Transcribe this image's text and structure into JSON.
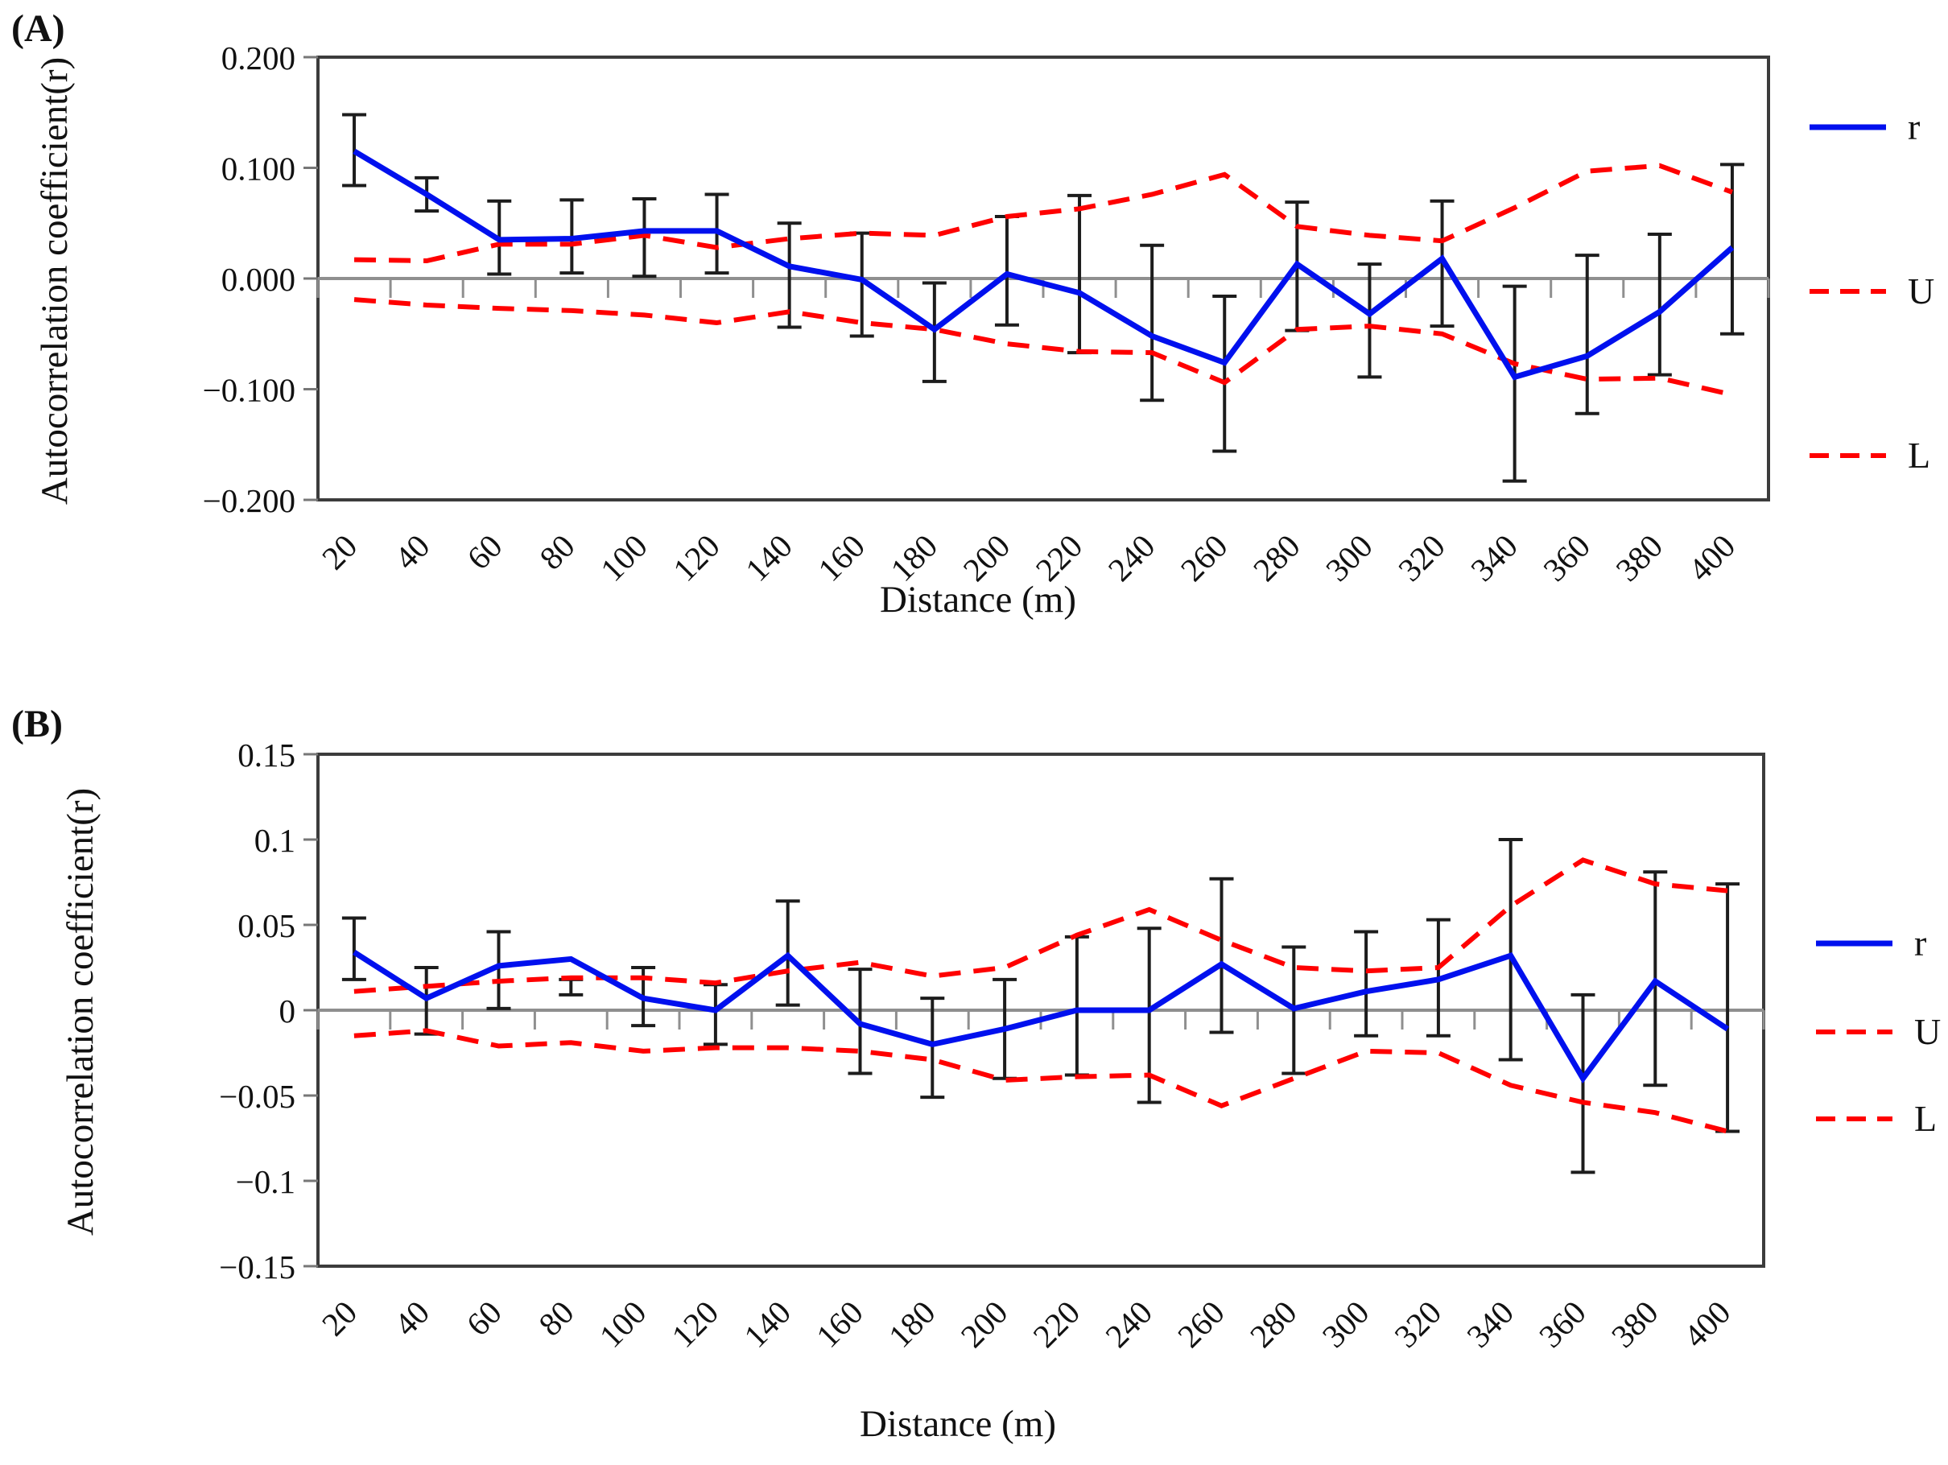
{
  "colors": {
    "r_line": "#0010ee",
    "bound_line": "#ff0000",
    "error_bar": "#1c1c1c",
    "zero_line": "#8f8f8f",
    "frame": "#3c3c3c",
    "tick": "#777777"
  },
  "chart_data": [
    {
      "type": "line",
      "panel_label": "(A)",
      "ylabel": "Autocorrelation coefficient(r)",
      "xlabel": "Distance (m)",
      "ylim": [
        -0.2,
        0.2
      ],
      "grid": false,
      "legend_position": "right",
      "yticks": [
        0.2,
        0.1,
        0.0,
        -0.1,
        -0.2
      ],
      "ytick_labels": [
        "0.200",
        "0.100",
        "0.000",
        "−0.100",
        "−0.200"
      ],
      "categories": [
        "20",
        "40",
        "60",
        "80",
        "100",
        "120",
        "140",
        "160",
        "180",
        "200",
        "220",
        "240",
        "260",
        "280",
        "300",
        "320",
        "340",
        "360",
        "380",
        "400"
      ],
      "series": [
        {
          "name": "r",
          "style": "solid",
          "values": [
            0.115,
            0.076,
            0.035,
            0.036,
            0.043,
            0.043,
            0.011,
            -0.001,
            -0.046,
            0.004,
            -0.013,
            -0.052,
            -0.076,
            0.013,
            -0.032,
            0.018,
            -0.089,
            -0.07,
            -0.03,
            0.028
          ]
        },
        {
          "name": "U",
          "style": "dashed",
          "values": [
            0.017,
            0.016,
            0.031,
            0.031,
            0.039,
            0.028,
            0.036,
            0.041,
            0.039,
            0.056,
            0.063,
            0.076,
            0.094,
            0.047,
            0.039,
            0.034,
            0.064,
            0.097,
            0.102,
            0.078
          ]
        },
        {
          "name": "L",
          "style": "dashed",
          "values": [
            -0.019,
            -0.024,
            -0.027,
            -0.029,
            -0.033,
            -0.04,
            -0.03,
            -0.04,
            -0.046,
            -0.059,
            -0.066,
            -0.067,
            -0.094,
            -0.046,
            -0.043,
            -0.05,
            -0.077,
            -0.091,
            -0.09,
            -0.105
          ]
        }
      ],
      "error_bars": {
        "top": [
          0.148,
          0.091,
          0.07,
          0.071,
          0.072,
          0.076,
          0.05,
          0.041,
          -0.004,
          0.056,
          0.075,
          0.03,
          -0.016,
          0.069,
          0.013,
          0.07,
          -0.007,
          0.021,
          0.04,
          0.103
        ],
        "bottom": [
          0.084,
          0.061,
          0.004,
          0.005,
          0.002,
          0.005,
          -0.044,
          -0.052,
          -0.093,
          -0.042,
          -0.067,
          -0.11,
          -0.156,
          -0.047,
          -0.089,
          -0.043,
          -0.183,
          -0.122,
          -0.087,
          -0.05
        ]
      },
      "legend": [
        "r",
        "U",
        "L"
      ]
    },
    {
      "type": "line",
      "panel_label": "(B)",
      "ylabel": "Autocorrelation coefficient(r)",
      "xlabel": "Distance (m)",
      "ylim": [
        -0.15,
        0.15
      ],
      "grid": false,
      "legend_position": "right",
      "yticks": [
        0.15,
        0.1,
        0.05,
        0.0,
        -0.05,
        -0.1,
        -0.15
      ],
      "ytick_labels": [
        "0.15",
        "0.1",
        "0.05",
        "0",
        "−0.05",
        "−0.1",
        "−0.15"
      ],
      "categories": [
        "20",
        "40",
        "60",
        "80",
        "100",
        "120",
        "140",
        "160",
        "180",
        "200",
        "220",
        "240",
        "260",
        "280",
        "300",
        "320",
        "340",
        "360",
        "380",
        "400"
      ],
      "series": [
        {
          "name": "r",
          "style": "solid",
          "values": [
            0.034,
            0.007,
            0.026,
            0.03,
            0.007,
            0.0,
            0.032,
            -0.008,
            -0.02,
            -0.011,
            0.0,
            0.0,
            0.027,
            0.001,
            0.011,
            0.018,
            0.032,
            -0.04,
            0.017,
            -0.011
          ]
        },
        {
          "name": "U",
          "style": "dashed",
          "values": [
            0.011,
            0.014,
            0.017,
            0.019,
            0.019,
            0.016,
            0.023,
            0.028,
            0.02,
            0.025,
            0.044,
            0.059,
            0.041,
            0.025,
            0.023,
            0.025,
            0.061,
            0.088,
            0.074,
            0.07
          ]
        },
        {
          "name": "L",
          "style": "dashed",
          "values": [
            -0.015,
            -0.012,
            -0.021,
            -0.019,
            -0.024,
            -0.022,
            -0.022,
            -0.024,
            -0.029,
            -0.041,
            -0.039,
            -0.038,
            -0.056,
            -0.04,
            -0.024,
            -0.025,
            -0.044,
            -0.054,
            -0.06,
            -0.071
          ]
        }
      ],
      "error_bars": {
        "top": [
          0.054,
          0.025,
          0.046,
          0.018,
          0.025,
          0.015,
          0.064,
          0.024,
          0.007,
          0.018,
          0.043,
          0.048,
          0.077,
          0.037,
          0.046,
          0.053,
          0.1,
          0.009,
          0.081,
          0.074
        ],
        "bottom": [
          0.018,
          -0.014,
          0.001,
          0.009,
          -0.009,
          -0.02,
          0.003,
          -0.037,
          -0.051,
          -0.04,
          -0.038,
          -0.054,
          -0.013,
          -0.037,
          -0.015,
          -0.015,
          -0.029,
          -0.095,
          -0.044,
          -0.071
        ]
      },
      "legend": [
        "r",
        "U",
        "L"
      ]
    }
  ]
}
